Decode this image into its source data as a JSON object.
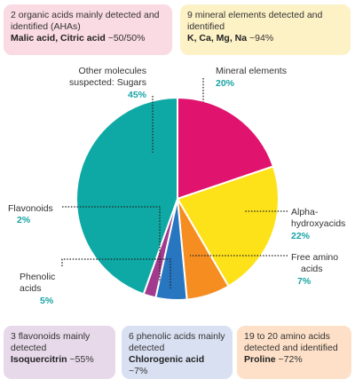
{
  "chart_data": {
    "type": "pie",
    "slices": [
      {
        "label": "Mineral elements",
        "value": 20,
        "pct": "20%",
        "color": "#e0136f"
      },
      {
        "label": "Alpha-hydroxyacids",
        "value": 22,
        "pct": "22%",
        "color": "#fde21a"
      },
      {
        "label": "Free amino acids",
        "value": 7,
        "pct": "7%",
        "color": "#f58d20"
      },
      {
        "label": "Phenolic acids",
        "value": 5,
        "pct": "5%",
        "color": "#2876c0"
      },
      {
        "label": "Flavonoids",
        "value": 2,
        "pct": "2%",
        "color": "#a23a8d"
      },
      {
        "label": "Other molecules suspected: Sugars",
        "value": 45,
        "pct": "45%",
        "color": "#0ea9a5"
      }
    ],
    "label_lines": {
      "mineral": [
        "Mineral elements"
      ],
      "alpha": [
        "Alpha-",
        "hydroxyacids"
      ],
      "amino": [
        "Free amino",
        "acids"
      ],
      "phenolic": [
        "Phenolic",
        "acids"
      ],
      "flavonoids": [
        "Flavonoids"
      ],
      "other": [
        "Other molecules",
        "suspected: Sugars"
      ]
    }
  },
  "info_boxes": {
    "organic_acids": {
      "desc": "2 organic acids mainly detected and identified (AHAs)",
      "highlight": "Malic acid, Citric acid",
      "value": " ~50/50%"
    },
    "minerals": {
      "desc": "9 mineral elements detected and identified",
      "highlight": "K, Ca, Mg, Na",
      "value": " ~94%"
    },
    "flavonoids": {
      "desc": "3 flavonoids mainly detected",
      "highlight": "Isoquercitrin",
      "value": " ~55%"
    },
    "phenolic": {
      "desc": "6 phenolic acids mainly detected",
      "highlight": "Chlorogenic acid",
      "value": " ~7%"
    },
    "amino": {
      "desc": "19 to 20 amino acids detected and identified",
      "highlight": "Proline",
      "value": " ~72%"
    }
  }
}
